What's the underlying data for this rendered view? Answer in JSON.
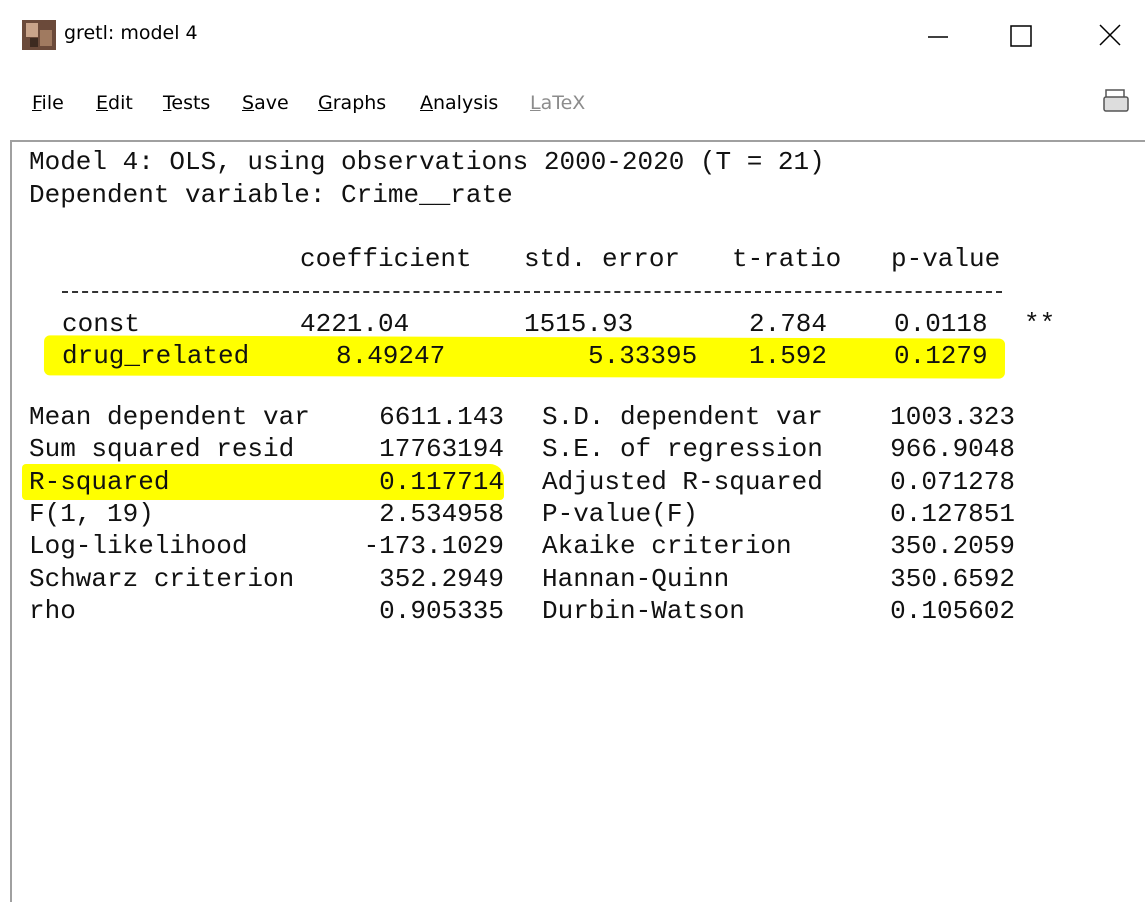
{
  "window": {
    "title": "gretl: model 4"
  },
  "menu": [
    "File",
    "Edit",
    "Tests",
    "Save",
    "Graphs",
    "Analysis",
    "LaTeX"
  ],
  "output": {
    "header": [
      "Model 4: OLS, using observations 2000-2020 (T = 21)",
      "Dependent variable: Crime__rate"
    ],
    "table": {
      "columns": [
        "coefficient",
        "std. error",
        "t-ratio",
        "p-value"
      ],
      "rows": [
        [
          "const",
          "4221.04",
          "1515.93",
          "2.784",
          "0.0118",
          "**"
        ],
        [
          "drug_related",
          "8.49247",
          "5.33395",
          "1.592",
          "0.1279"
        ]
      ]
    },
    "stats": [
      [
        "Mean dependent var",
        "6611.143",
        "S.D. dependent var",
        "1003.323"
      ],
      [
        "Sum squared resid",
        "17763194",
        "S.E. of regression",
        "966.9048"
      ],
      [
        "R-squared",
        "0.117714",
        "Adjusted R-squared",
        "0.071278"
      ],
      [
        "F(1, 19)",
        "2.534958",
        "P-value(F)",
        "0.127851"
      ],
      [
        "Log-likelihood",
        "-173.1029",
        "Akaike criterion",
        "350.2059"
      ],
      [
        "Schwarz criterion",
        "352.2949",
        "Hannan-Quinn",
        "350.6592"
      ],
      [
        "rho",
        "0.905335",
        "Durbin-Watson",
        "0.105602"
      ]
    ]
  }
}
